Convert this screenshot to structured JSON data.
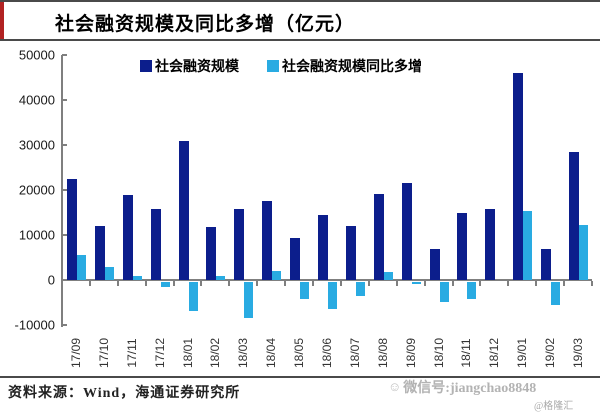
{
  "title": "社会融资规模及同比多增（亿元）",
  "legend": [
    {
      "label": "社会融资规模",
      "color": "#0c1e8c"
    },
    {
      "label": "社会融资规模同比多增",
      "color": "#29abe2"
    }
  ],
  "source": "资料来源：Wind，海通证券研究所",
  "watermark": {
    "icon": "smiley-icon",
    "icon_glyph": "☺",
    "wechat": "微信号:jiangchao8848",
    "brand": "@格隆汇"
  },
  "colors": {
    "bar_primary": "#0c1e8c",
    "bar_secondary": "#29abe2",
    "axis": "#7f7f7f",
    "accent_red": "#b22222",
    "watermark_gray": "#b3b3b3"
  },
  "chart_data": {
    "type": "bar",
    "title": "社会融资规模及同比多增（亿元）",
    "xlabel": "",
    "ylabel": "",
    "ylim": [
      -10000,
      50000
    ],
    "yticks": [
      50000,
      40000,
      30000,
      20000,
      10000,
      0,
      -10000
    ],
    "grid": false,
    "legend_position": "top",
    "categories": [
      "17/09",
      "17/10",
      "17/11",
      "17/12",
      "18/01",
      "18/02",
      "18/03",
      "18/04",
      "18/05",
      "18/06",
      "18/07",
      "18/08",
      "18/09",
      "18/10",
      "18/11",
      "18/12",
      "19/01",
      "19/02",
      "19/03"
    ],
    "series": [
      {
        "name": "社会融资规模",
        "color": "#0c1e8c",
        "values": [
          22500,
          12000,
          19000,
          15700,
          31000,
          11700,
          15700,
          17600,
          9400,
          14500,
          12000,
          19100,
          21500,
          7000,
          15000,
          15700,
          46000,
          7000,
          28500
        ]
      },
      {
        "name": "社会融资规模同比多增",
        "color": "#29abe2",
        "values": [
          5500,
          3000,
          1000,
          -1000,
          -6500,
          1000,
          -8000,
          2000,
          -3700,
          -6000,
          -3200,
          1800,
          -500,
          -4500,
          -3700,
          0,
          15400,
          -5000,
          12300
        ]
      }
    ]
  }
}
